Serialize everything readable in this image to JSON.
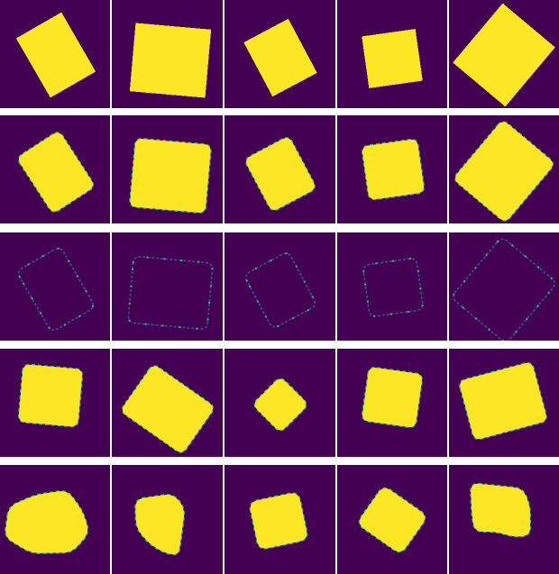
{
  "colors": {
    "background": "#440154",
    "fill": "#fde725",
    "edge_soft": "#35b779",
    "edge_blue": "#31688e",
    "edge_faint": "#3b528b",
    "separator": "#ffffff"
  },
  "rows": [
    {
      "kind": "mask-hard",
      "cells": [
        {
          "shape": "rotated-rectangle",
          "angle_deg": -30
        },
        {
          "shape": "rotated-square",
          "angle_deg": 5
        },
        {
          "shape": "rotated-square",
          "angle_deg": -28
        },
        {
          "shape": "rotated-square",
          "angle_deg": -8
        },
        {
          "shape": "rotated-square",
          "angle_deg": 40
        }
      ]
    },
    {
      "kind": "mask-soft",
      "cells": [
        {
          "shape": "rotated-rectangle",
          "angle_deg": -33
        },
        {
          "shape": "rotated-square",
          "angle_deg": 5
        },
        {
          "shape": "rotated-square",
          "angle_deg": -28
        },
        {
          "shape": "rotated-square",
          "angle_deg": -8
        },
        {
          "shape": "rotated-square",
          "angle_deg": 40
        }
      ]
    },
    {
      "kind": "edge-difference",
      "cells": [
        {
          "shape": "rotated-rectangle-outline",
          "angle_deg": -30
        },
        {
          "shape": "rotated-square-outline",
          "angle_deg": 5
        },
        {
          "shape": "rotated-square-outline",
          "angle_deg": -28
        },
        {
          "shape": "rotated-square-outline",
          "angle_deg": -8
        },
        {
          "shape": "rotated-square-outline",
          "angle_deg": 40
        }
      ]
    },
    {
      "kind": "mask-soft",
      "cells": [
        {
          "shape": "rotated-square",
          "angle_deg": 5
        },
        {
          "shape": "rotated-rectangle",
          "angle_deg": 35
        },
        {
          "shape": "rotated-square",
          "angle_deg": 45
        },
        {
          "shape": "rotated-square",
          "angle_deg": 8
        },
        {
          "shape": "rotated-square",
          "angle_deg": -15
        }
      ]
    },
    {
      "kind": "mask-warped",
      "cells": [
        {
          "shape": "warped-square",
          "angle_deg": 15
        },
        {
          "shape": "warped-quad",
          "angle_deg": 5
        },
        {
          "shape": "rotated-square",
          "angle_deg": -12
        },
        {
          "shape": "rotated-square",
          "angle_deg": 35
        },
        {
          "shape": "warped-quad",
          "angle_deg": 3
        }
      ]
    }
  ]
}
